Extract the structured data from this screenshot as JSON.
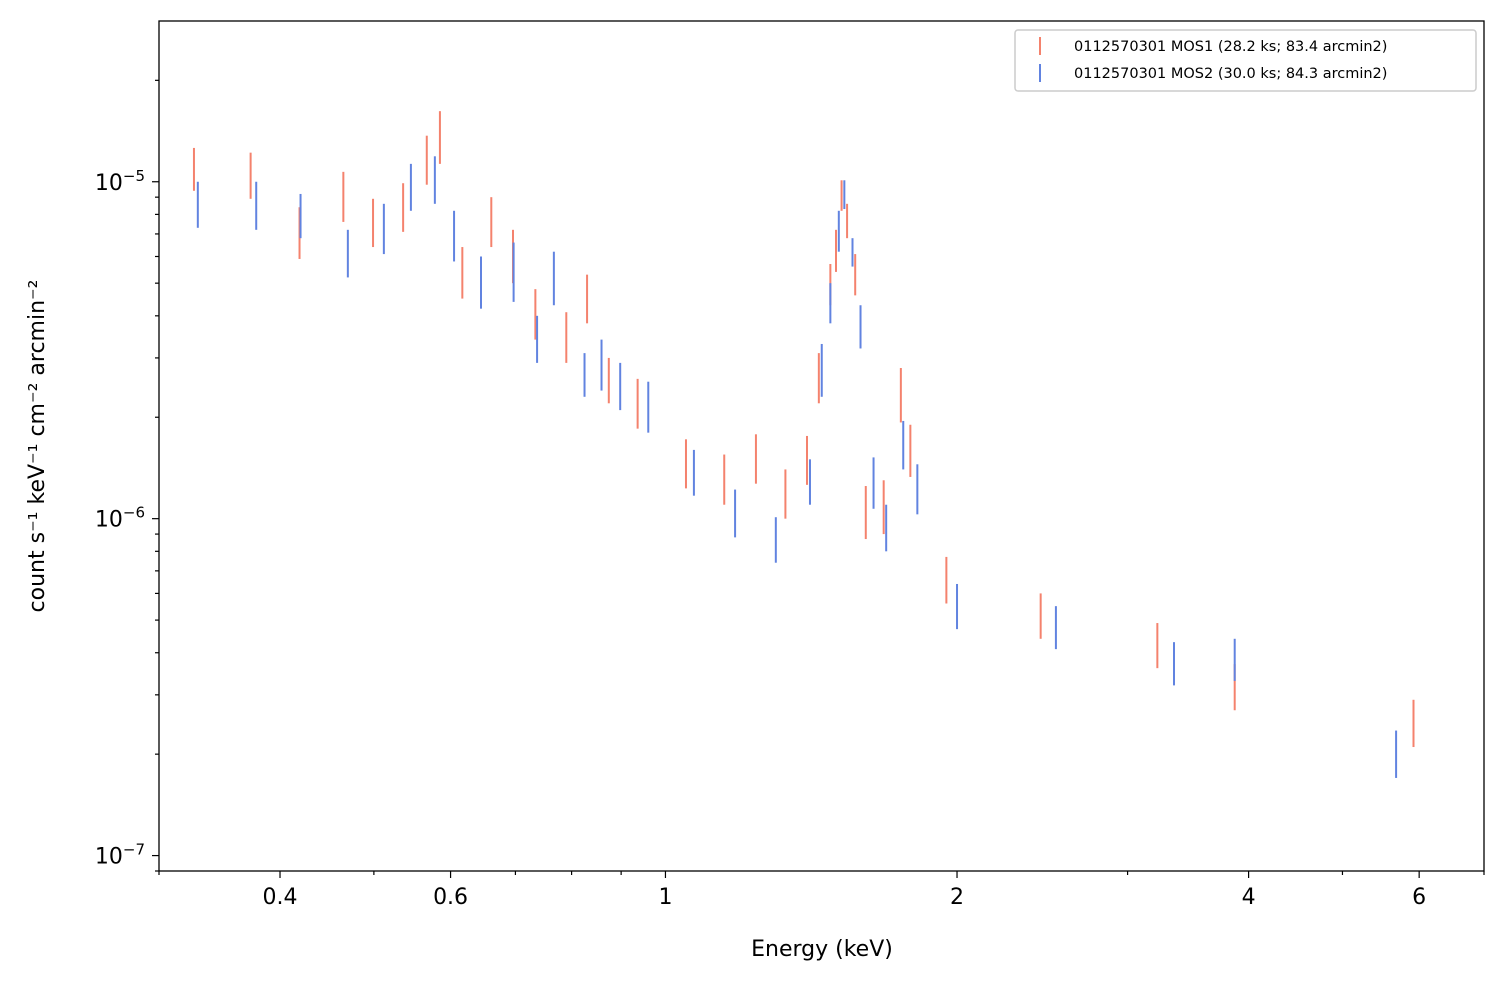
{
  "chart_data": {
    "type": "errorbar",
    "title": "",
    "xlabel": "Energy (keV)",
    "ylabel": "count s⁻¹ keV⁻¹ cm⁻² arcmin⁻²",
    "xscale": "log",
    "yscale": "log",
    "xlim": [
      0.3,
      7.0
    ],
    "ylim": [
      9e-08,
      3e-05
    ],
    "x_tick_labels": [
      {
        "value": 0.4,
        "label": "0.4"
      },
      {
        "value": 0.6,
        "label": "0.6"
      },
      {
        "value": 1,
        "label": "1"
      },
      {
        "value": 2,
        "label": "2"
      },
      {
        "value": 4,
        "label": "4"
      },
      {
        "value": 6,
        "label": "6"
      }
    ],
    "y_tick_labels": [
      {
        "value": 1e-05,
        "base": "10",
        "exp": "−5"
      },
      {
        "value": 1e-06,
        "base": "10",
        "exp": "−6"
      },
      {
        "value": 1e-07,
        "base": "10",
        "exp": "−7"
      }
    ],
    "legend": {
      "location": "top-right"
    },
    "grid": false,
    "series": [
      {
        "name": "0112570301 MOS1 (28.2 ks; 83.4 arcmin2)",
        "color": "#f4826d",
        "points": [
          {
            "x": 0.326,
            "ylo": 9.4e-06,
            "yhi": 1.26e-05
          },
          {
            "x": 0.373,
            "ylo": 8.9e-06,
            "yhi": 1.22e-05
          },
          {
            "x": 0.419,
            "ylo": 5.9e-06,
            "yhi": 8.4e-06
          },
          {
            "x": 0.465,
            "ylo": 7.6e-06,
            "yhi": 1.07e-05
          },
          {
            "x": 0.499,
            "ylo": 6.4e-06,
            "yhi": 8.9e-06
          },
          {
            "x": 0.536,
            "ylo": 7.1e-06,
            "yhi": 9.9e-06
          },
          {
            "x": 0.567,
            "ylo": 9.8e-06,
            "yhi": 1.37e-05
          },
          {
            "x": 0.585,
            "ylo": 1.13e-05,
            "yhi": 1.62e-05
          },
          {
            "x": 0.617,
            "ylo": 4.5e-06,
            "yhi": 6.4e-06
          },
          {
            "x": 0.661,
            "ylo": 6.4e-06,
            "yhi": 9e-06
          },
          {
            "x": 0.696,
            "ylo": 5e-06,
            "yhi": 7.2e-06
          },
          {
            "x": 0.734,
            "ylo": 3.4e-06,
            "yhi": 4.8e-06
          },
          {
            "x": 0.79,
            "ylo": 2.9e-06,
            "yhi": 4.1e-06
          },
          {
            "x": 0.83,
            "ylo": 3.8e-06,
            "yhi": 5.3e-06
          },
          {
            "x": 0.874,
            "ylo": 2.2e-06,
            "yhi": 3e-06
          },
          {
            "x": 0.936,
            "ylo": 1.85e-06,
            "yhi": 2.6e-06
          },
          {
            "x": 1.05,
            "ylo": 1.23e-06,
            "yhi": 1.72e-06
          },
          {
            "x": 1.15,
            "ylo": 1.1e-06,
            "yhi": 1.55e-06
          },
          {
            "x": 1.24,
            "ylo": 1.27e-06,
            "yhi": 1.78e-06
          },
          {
            "x": 1.33,
            "ylo": 1e-06,
            "yhi": 1.4e-06
          },
          {
            "x": 1.4,
            "ylo": 1.26e-06,
            "yhi": 1.76e-06
          },
          {
            "x": 1.44,
            "ylo": 2.2e-06,
            "yhi": 3.1e-06
          },
          {
            "x": 1.48,
            "ylo": 4.3e-06,
            "yhi": 5.7e-06
          },
          {
            "x": 1.5,
            "ylo": 5.4e-06,
            "yhi": 7.2e-06
          },
          {
            "x": 1.52,
            "ylo": 8.2e-06,
            "yhi": 1.01e-05
          },
          {
            "x": 1.54,
            "ylo": 6.8e-06,
            "yhi": 8.6e-06
          },
          {
            "x": 1.57,
            "ylo": 4.6e-06,
            "yhi": 6.1e-06
          },
          {
            "x": 1.61,
            "ylo": 8.7e-07,
            "yhi": 1.25e-06
          },
          {
            "x": 1.68,
            "ylo": 9e-07,
            "yhi": 1.3e-06
          },
          {
            "x": 1.75,
            "ylo": 1.93e-06,
            "yhi": 2.8e-06
          },
          {
            "x": 1.79,
            "ylo": 1.33e-06,
            "yhi": 1.9e-06
          },
          {
            "x": 1.95,
            "ylo": 5.6e-07,
            "yhi": 7.7e-07
          },
          {
            "x": 2.44,
            "ylo": 4.4e-07,
            "yhi": 6e-07
          },
          {
            "x": 3.22,
            "ylo": 3.6e-07,
            "yhi": 4.9e-07
          },
          {
            "x": 3.87,
            "ylo": 2.7e-07,
            "yhi": 3.7e-07
          },
          {
            "x": 5.92,
            "ylo": 2.1e-07,
            "yhi": 2.9e-07
          }
        ]
      },
      {
        "name": "0112570301 MOS2 (30.0 ks; 84.3 arcmin2)",
        "color": "#6183e0",
        "points": [
          {
            "x": 0.329,
            "ylo": 7.3e-06,
            "yhi": 1e-05
          },
          {
            "x": 0.378,
            "ylo": 7.2e-06,
            "yhi": 1e-05
          },
          {
            "x": 0.42,
            "ylo": 6.8e-06,
            "yhi": 9.2e-06
          },
          {
            "x": 0.47,
            "ylo": 5.2e-06,
            "yhi": 7.2e-06
          },
          {
            "x": 0.512,
            "ylo": 6.1e-06,
            "yhi": 8.6e-06
          },
          {
            "x": 0.546,
            "ylo": 8.2e-06,
            "yhi": 1.13e-05
          },
          {
            "x": 0.578,
            "ylo": 8.6e-06,
            "yhi": 1.19e-05
          },
          {
            "x": 0.605,
            "ylo": 5.8e-06,
            "yhi": 8.2e-06
          },
          {
            "x": 0.645,
            "ylo": 4.2e-06,
            "yhi": 6e-06
          },
          {
            "x": 0.697,
            "ylo": 4.4e-06,
            "yhi": 6.6e-06
          },
          {
            "x": 0.737,
            "ylo": 2.9e-06,
            "yhi": 4e-06
          },
          {
            "x": 0.767,
            "ylo": 4.3e-06,
            "yhi": 6.2e-06
          },
          {
            "x": 0.825,
            "ylo": 2.3e-06,
            "yhi": 3.1e-06
          },
          {
            "x": 0.859,
            "ylo": 2.4e-06,
            "yhi": 3.4e-06
          },
          {
            "x": 0.898,
            "ylo": 2.1e-06,
            "yhi": 2.9e-06
          },
          {
            "x": 0.96,
            "ylo": 1.8e-06,
            "yhi": 2.55e-06
          },
          {
            "x": 1.07,
            "ylo": 1.17e-06,
            "yhi": 1.6e-06
          },
          {
            "x": 1.18,
            "ylo": 8.8e-07,
            "yhi": 1.22e-06
          },
          {
            "x": 1.3,
            "ylo": 7.4e-07,
            "yhi": 1.01e-06
          },
          {
            "x": 1.41,
            "ylo": 1.1e-06,
            "yhi": 1.5e-06
          },
          {
            "x": 1.45,
            "ylo": 2.3e-06,
            "yhi": 3.3e-06
          },
          {
            "x": 1.48,
            "ylo": 3.8e-06,
            "yhi": 5e-06
          },
          {
            "x": 1.51,
            "ylo": 6.2e-06,
            "yhi": 8.2e-06
          },
          {
            "x": 1.53,
            "ylo": 8.3e-06,
            "yhi": 1.01e-05
          },
          {
            "x": 1.56,
            "ylo": 5.6e-06,
            "yhi": 6.8e-06
          },
          {
            "x": 1.59,
            "ylo": 3.2e-06,
            "yhi": 4.3e-06
          },
          {
            "x": 1.64,
            "ylo": 1.07e-06,
            "yhi": 1.52e-06
          },
          {
            "x": 1.69,
            "ylo": 8e-07,
            "yhi": 1.1e-06
          },
          {
            "x": 1.76,
            "ylo": 1.4e-06,
            "yhi": 1.95e-06
          },
          {
            "x": 1.82,
            "ylo": 1.03e-06,
            "yhi": 1.45e-06
          },
          {
            "x": 2.0,
            "ylo": 4.7e-07,
            "yhi": 6.4e-07
          },
          {
            "x": 2.53,
            "ylo": 4.1e-07,
            "yhi": 5.5e-07
          },
          {
            "x": 3.35,
            "ylo": 3.2e-07,
            "yhi": 4.3e-07
          },
          {
            "x": 3.87,
            "ylo": 3.3e-07,
            "yhi": 4.4e-07
          },
          {
            "x": 5.68,
            "ylo": 1.7e-07,
            "yhi": 2.35e-07
          }
        ]
      }
    ]
  }
}
